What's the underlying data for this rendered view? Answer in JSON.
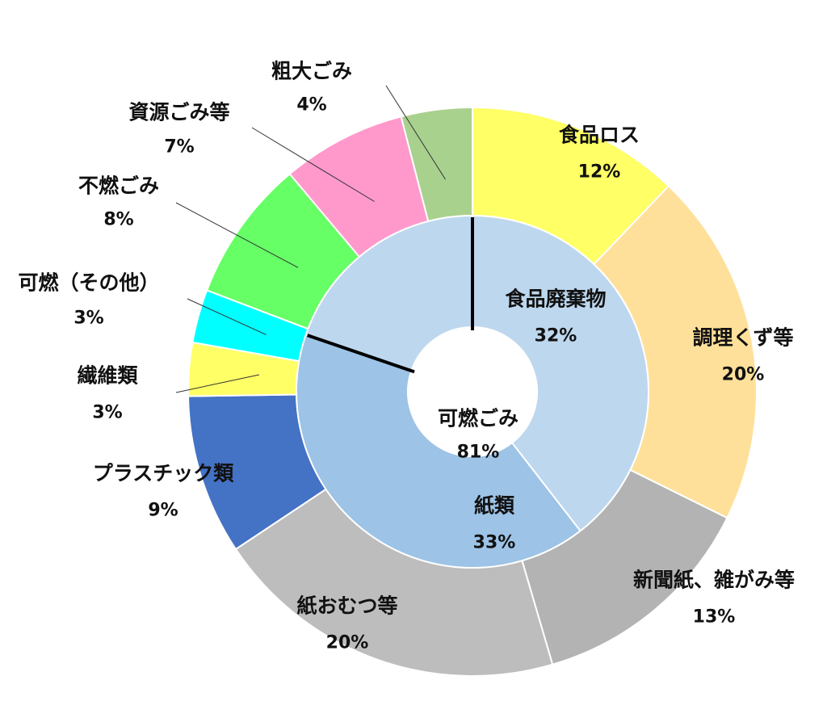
{
  "chart_data": {
    "type": "pie",
    "center_label": {
      "name": "可燃ごみ",
      "value": "81%"
    },
    "outer_ring": [
      {
        "name": "食品ロス",
        "value": 12,
        "label": "12%",
        "color": "#FFFF66"
      },
      {
        "name": "調理くず等",
        "value": 20,
        "label": "20%",
        "color": "#FFE09A"
      },
      {
        "name": "新聞紙、雑がみ等",
        "value": 13,
        "label": "13%",
        "color": "#B3B3B3"
      },
      {
        "name": "紙おむつ等",
        "value": 20,
        "label": "20%",
        "color": "#BDBDBD"
      },
      {
        "name": "プラスチック類",
        "value": 9,
        "label": "9%",
        "color": "#4472C4"
      },
      {
        "name": "繊維類",
        "value": 3,
        "label": "3%",
        "color": "#FFFF66"
      },
      {
        "name": "可燃（その他）",
        "value": 3,
        "label": "3%",
        "color": "#00FFFF"
      },
      {
        "name": "不燃ごみ",
        "value": 8,
        "label": "8%",
        "color": "#66FF66"
      },
      {
        "name": "資源ごみ等",
        "value": 7,
        "label": "7%",
        "color": "#FF99CC"
      },
      {
        "name": "粗大ごみ",
        "value": 4,
        "label": "4%",
        "color": "#A9D18E"
      }
    ],
    "inner_ring": [
      {
        "name": "食品廃棄物",
        "value": 32,
        "label": "32%",
        "color": "#BDD7EE"
      },
      {
        "name": "紙類",
        "value": 33,
        "label": "33%",
        "color": "#9DC3E6"
      },
      {
        "name": "",
        "value": 16,
        "label": "",
        "color": "#BDD7EE"
      }
    ]
  }
}
